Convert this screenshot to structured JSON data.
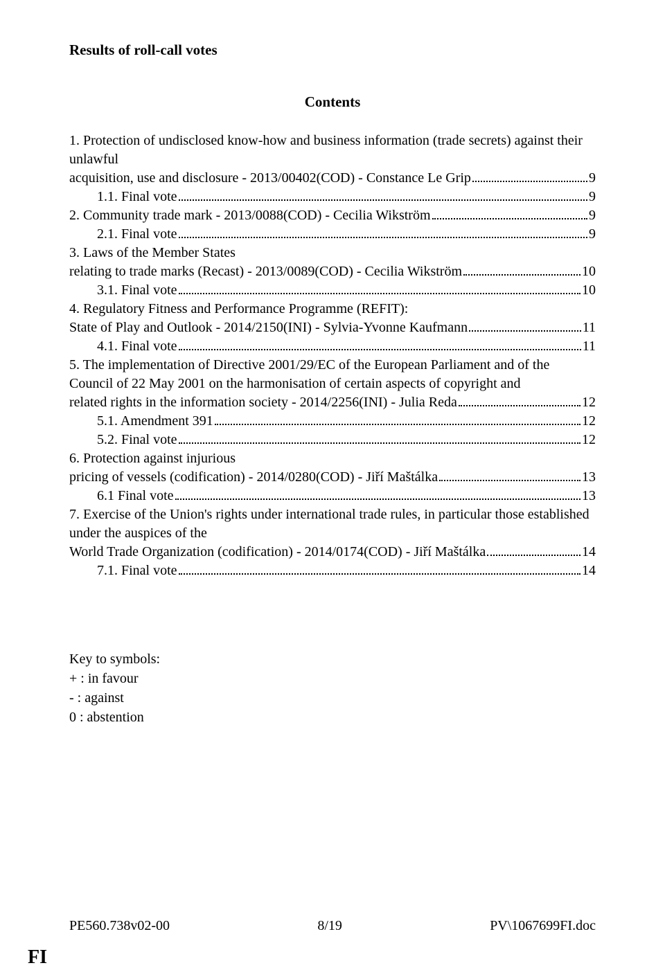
{
  "title": "Results of roll-call votes",
  "subtitle": "Contents",
  "toc": [
    {
      "indent": false,
      "text": "1.  Protection of undisclosed know-how and business information (trade secrets) against their unlawful acquisition, use and disclosure - 2013/00402(COD) - Constance Le Grip",
      "page": "9"
    },
    {
      "indent": true,
      "text": "1.1.  Final vote",
      "page": "9"
    },
    {
      "indent": false,
      "text": "2.  Community trade mark - 2013/0088(COD) - Cecilia Wikström",
      "page": "9"
    },
    {
      "indent": true,
      "text": "2.1.  Final vote",
      "page": "9"
    },
    {
      "indent": false,
      "text": "3.  Laws of the Member States relating to trade marks (Recast) - 2013/0089(COD) - Cecilia Wikström",
      "page": "10"
    },
    {
      "indent": true,
      "text": "3.1.  Final vote",
      "page": "10"
    },
    {
      "indent": false,
      "text": "4.  Regulatory Fitness and Performance Programme (REFIT): State of Play and Outlook - 2014/2150(INI) - Sylvia-Yvonne Kaufmann",
      "page": "11"
    },
    {
      "indent": true,
      "text": "4.1.  Final vote",
      "page": "11"
    },
    {
      "indent": false,
      "text": "5.  The implementation of Directive 2001/29/EC of the European Parliament and of the Council of 22 May 2001 on the harmonisation of certain aspects of copyright and related rights in the information society - 2014/2256(INI) - Julia Reda",
      "page": "12"
    },
    {
      "indent": true,
      "text": "5.1.  Amendment 391",
      "page": "12"
    },
    {
      "indent": true,
      "text": "5.2.  Final vote",
      "page": "12"
    },
    {
      "indent": false,
      "text": "6.  Protection against injurious pricing of vessels (codification) - 2014/0280(COD) - Jiří Maštálka",
      "page": "13"
    },
    {
      "indent": true,
      "text": "6.1  Final vote",
      "page": "13"
    },
    {
      "indent": false,
      "text": "7.  Exercise of the Union's rights under international trade rules, in particular those established under the auspices of the World Trade Organization (codification) - 2014/0174(COD) - Jiří Maštálka",
      "page": "14"
    },
    {
      "indent": true,
      "text": "7.1.  Final vote",
      "page": "14"
    }
  ],
  "key": {
    "heading": "Key to symbols:",
    "lines": [
      "+  :  in favour",
      "-   :  against",
      "0  :  abstention"
    ]
  },
  "footer": {
    "left": "PE560.738v02-00",
    "center": "8/19",
    "right": "PV\\1067699FI.doc"
  },
  "corner": "FI"
}
